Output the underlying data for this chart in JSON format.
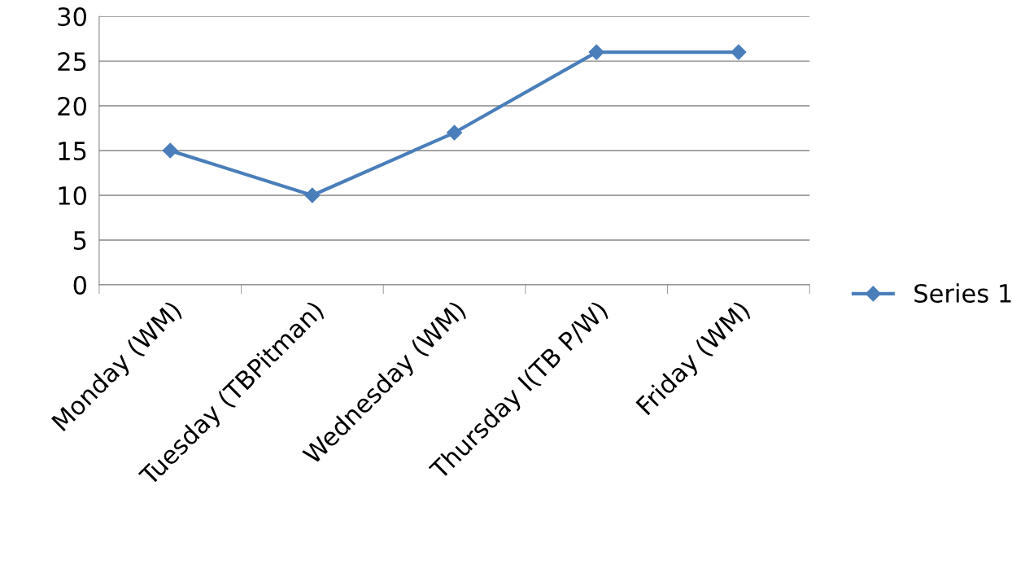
{
  "chart_data": {
    "type": "line",
    "categories": [
      "Monday (WM)",
      "Tuesday (TBPitman)",
      "Wednesday (WM)",
      "Thursday I(TB P/W)",
      "Friday (WM)"
    ],
    "series": [
      {
        "name": "Series 1",
        "color": "#4a7ebb",
        "values": [
          15,
          10,
          17,
          26,
          26
        ]
      }
    ],
    "ylim": [
      0,
      30
    ],
    "yticks": [
      0,
      5,
      10,
      15,
      20,
      25,
      30
    ],
    "grid": "y",
    "legend": "right",
    "marker": "diamond",
    "line_style": "solid"
  }
}
